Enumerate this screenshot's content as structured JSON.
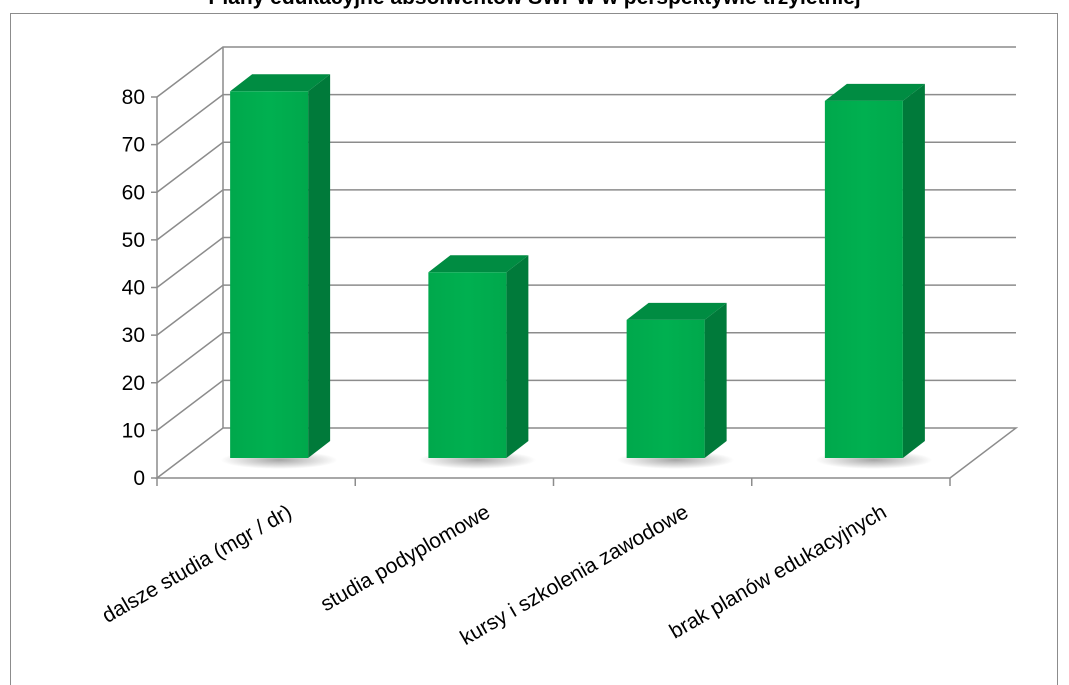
{
  "chart_data": {
    "type": "bar",
    "title": "Plany edukacyjne absolwentów SWPW w perspektywie trzyletniej",
    "categories": [
      "dalsze studia (mgr / dr)",
      "studia podyplomowe",
      "kursy i szkolenia zawodowe",
      "brak planów edukacyjnych"
    ],
    "values": [
      77,
      39,
      29,
      75
    ],
    "ylim": [
      0,
      80
    ],
    "yticks": [
      "0",
      "10",
      "20",
      "30",
      "40",
      "50",
      "60",
      "70",
      "80"
    ],
    "grid": true,
    "bar_color": "#00b050",
    "bar_side_color": "#007a3a",
    "bar_top_color": "#008c42"
  }
}
